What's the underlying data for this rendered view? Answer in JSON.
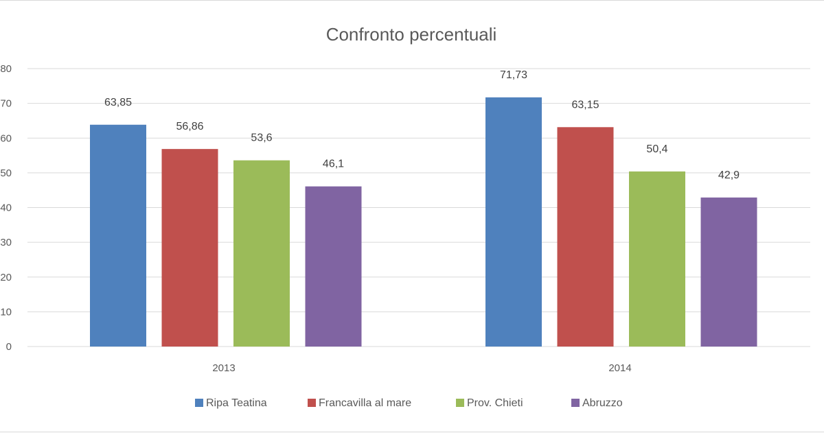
{
  "chart_data": {
    "type": "bar",
    "title": "Confronto percentuali",
    "categories": [
      "2013",
      "2014"
    ],
    "series": [
      {
        "name": "Ripa Teatina",
        "color": "#4f81bd",
        "values": [
          63.85,
          71.73
        ],
        "labels": [
          "63,85",
          "71,73"
        ]
      },
      {
        "name": "Francavilla al mare",
        "color": "#c0504d",
        "values": [
          56.86,
          63.15
        ],
        "labels": [
          "56,86",
          "63,15"
        ]
      },
      {
        "name": "Prov. Chieti",
        "color": "#9bbb59",
        "values": [
          53.6,
          50.4
        ],
        "labels": [
          "53,6",
          "50,4"
        ]
      },
      {
        "name": "Abruzzo",
        "color": "#8064a2",
        "values": [
          46.1,
          42.9
        ],
        "labels": [
          "46,1",
          "42,9"
        ]
      }
    ],
    "yticks": [
      "0",
      "10",
      "20",
      "30",
      "40",
      "50",
      "60",
      "70",
      "80"
    ],
    "ylim": [
      0,
      80
    ],
    "xlabel": "",
    "ylabel": "",
    "grid": true,
    "legend_position": "bottom"
  }
}
